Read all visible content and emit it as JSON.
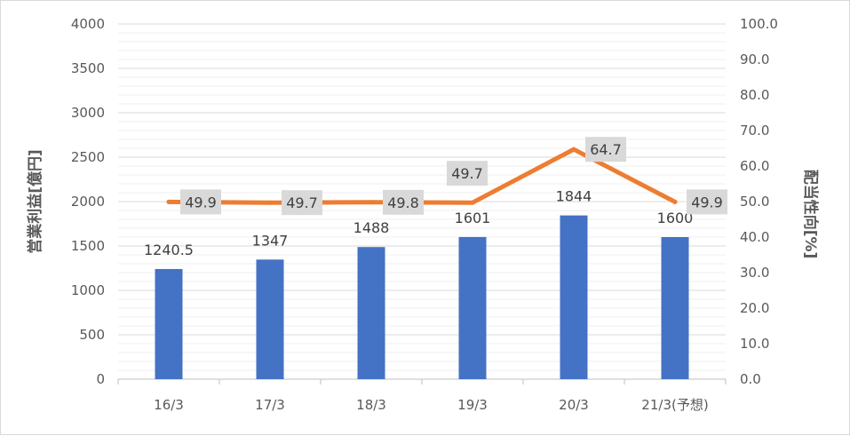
{
  "chart_data": {
    "type": "bar",
    "categories": [
      "16/3",
      "17/3",
      "18/3",
      "19/3",
      "20/3",
      "21/3(予想)"
    ],
    "series": [
      {
        "name": "",
        "type": "bar",
        "axis": "left",
        "color": "#4472c4",
        "values": [
          1240.5,
          1347,
          1488,
          1601,
          1844,
          1600
        ],
        "labels": [
          "1240.5",
          "1347",
          "1488",
          "1601",
          "1844",
          "1600"
        ]
      },
      {
        "name": "",
        "type": "line",
        "axis": "right",
        "color": "#ed7d31",
        "values": [
          49.9,
          49.7,
          49.8,
          49.7,
          64.7,
          49.9
        ],
        "labels": [
          "49.9",
          "49.7",
          "49.8",
          "49.7",
          "64.7",
          "49.9"
        ]
      }
    ],
    "ylabel": "営業利益[億円]",
    "y2label": "配当性向[%]",
    "ylim": [
      0,
      4000
    ],
    "y2lim": [
      0,
      100
    ],
    "yticks": [
      "0",
      "500",
      "1000",
      "1500",
      "2000",
      "2500",
      "3000",
      "3500",
      "4000"
    ],
    "y2ticks": [
      "0.0",
      "10.0",
      "20.0",
      "30.0",
      "40.0",
      "50.0",
      "60.0",
      "70.0",
      "80.0",
      "90.0",
      "100.0"
    ],
    "grid": true,
    "label_box_color": "#d9d9d9"
  }
}
